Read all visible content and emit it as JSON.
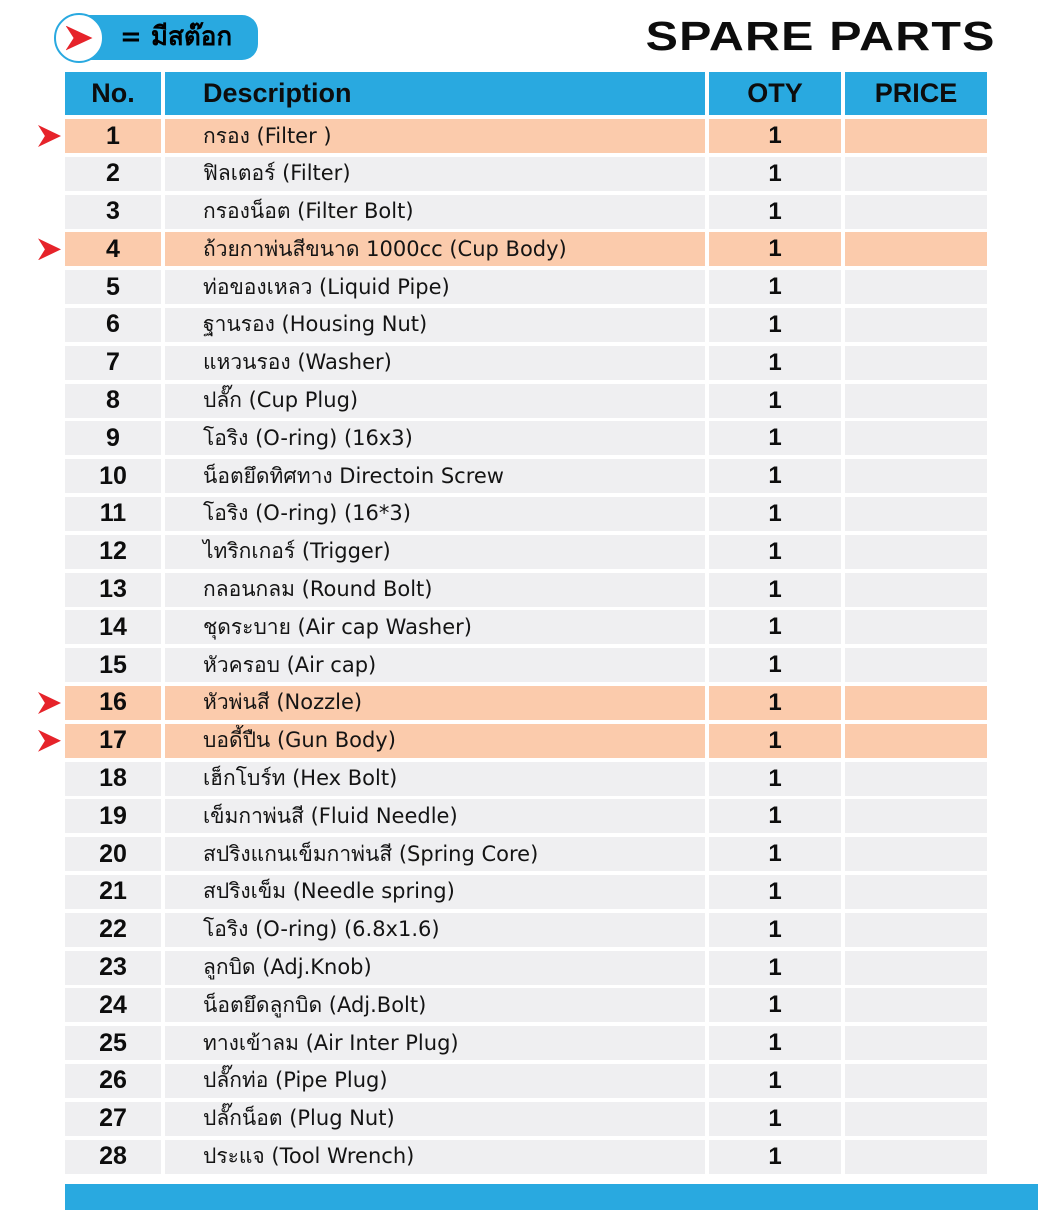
{
  "page": {
    "title": "SPARE PARTS"
  },
  "legend": {
    "label": "= มีสต๊อก",
    "icon": "stock-arrow-icon"
  },
  "colors": {
    "accent_blue": "#29A9E0",
    "highlight_orange": "#FBCBAC",
    "row_gray": "#EFEFF1",
    "arrow_red": "#E6232A"
  },
  "table": {
    "headers": {
      "no": "No.",
      "description": "Description",
      "qty": "OTY",
      "price": "PRICE"
    },
    "rows": [
      {
        "no": "1",
        "description": "กรอง (Filter )",
        "qty": "1",
        "price": "",
        "in_stock": true
      },
      {
        "no": "2",
        "description": "ฟิลเตอร์ (Filter)",
        "qty": "1",
        "price": "",
        "in_stock": false
      },
      {
        "no": "3",
        "description": "กรองน็อต (Filter Bolt)",
        "qty": "1",
        "price": "",
        "in_stock": false
      },
      {
        "no": "4",
        "description": "ถ้วยกาพ่นสีขนาด 1000cc (Cup Body)",
        "qty": "1",
        "price": "",
        "in_stock": true
      },
      {
        "no": "5",
        "description": "ท่อของเหลว (Liquid Pipe)",
        "qty": "1",
        "price": "",
        "in_stock": false
      },
      {
        "no": "6",
        "description": "ฐานรอง (Housing Nut)",
        "qty": "1",
        "price": "",
        "in_stock": false
      },
      {
        "no": "7",
        "description": "แหวนรอง (Washer)",
        "qty": "1",
        "price": "",
        "in_stock": false
      },
      {
        "no": "8",
        "description": "ปลั๊ก (Cup Plug)",
        "qty": "1",
        "price": "",
        "in_stock": false
      },
      {
        "no": "9",
        "description": "โอริง (O-ring) (16x3)",
        "qty": "1",
        "price": "",
        "in_stock": false
      },
      {
        "no": "10",
        "description": "น็อตยึดทิศทาง Directoin Screw",
        "qty": "1",
        "price": "",
        "in_stock": false
      },
      {
        "no": "11",
        "description": "โอริง (O-ring) (16*3)",
        "qty": "1",
        "price": "",
        "in_stock": false
      },
      {
        "no": "12",
        "description": "ไทริกเกอร์ (Trigger)",
        "qty": "1",
        "price": "",
        "in_stock": false
      },
      {
        "no": "13",
        "description": "กลอนกลม (Round Bolt)",
        "qty": "1",
        "price": "",
        "in_stock": false
      },
      {
        "no": "14",
        "description": "ชุดระบาย (Air cap Washer)",
        "qty": "1",
        "price": "",
        "in_stock": false
      },
      {
        "no": "15",
        "description": "หัวครอบ (Air cap)",
        "qty": "1",
        "price": "",
        "in_stock": false
      },
      {
        "no": "16",
        "description": "หัวพ่นสี (Nozzle)",
        "qty": "1",
        "price": "",
        "in_stock": true
      },
      {
        "no": "17",
        "description": "บอดี้ปืน (Gun Body)",
        "qty": "1",
        "price": "",
        "in_stock": true
      },
      {
        "no": "18",
        "description": "เฮ็กโบร์ท (Hex Bolt)",
        "qty": "1",
        "price": "",
        "in_stock": false
      },
      {
        "no": "19",
        "description": "เข็มกาพ่นสี (Fluid Needle)",
        "qty": "1",
        "price": "",
        "in_stock": false
      },
      {
        "no": "20",
        "description": "สปริงแกนเข็มกาพ่นสี (Spring Core)",
        "qty": "1",
        "price": "",
        "in_stock": false
      },
      {
        "no": "21",
        "description": "สปริงเข็ม (Needle spring)",
        "qty": "1",
        "price": "",
        "in_stock": false
      },
      {
        "no": "22",
        "description": "โอริง (O-ring) (6.8x1.6)",
        "qty": "1",
        "price": "",
        "in_stock": false
      },
      {
        "no": "23",
        "description": "ลูกบิด (Adj.Knob)",
        "qty": "1",
        "price": "",
        "in_stock": false
      },
      {
        "no": "24",
        "description": "น็อตยึดลูกบิด (Adj.Bolt)",
        "qty": "1",
        "price": "",
        "in_stock": false
      },
      {
        "no": "25",
        "description": "ทางเข้าลม (Air Inter Plug)",
        "qty": "1",
        "price": "",
        "in_stock": false
      },
      {
        "no": "26",
        "description": "ปลั๊กท่อ (Pipe Plug)",
        "qty": "1",
        "price": "",
        "in_stock": false
      },
      {
        "no": "27",
        "description": "ปลั๊กน็อต (Plug Nut)",
        "qty": "1",
        "price": "",
        "in_stock": false
      },
      {
        "no": "28",
        "description": "ประแจ (Tool Wrench)",
        "qty": "1",
        "price": "",
        "in_stock": false
      }
    ]
  }
}
